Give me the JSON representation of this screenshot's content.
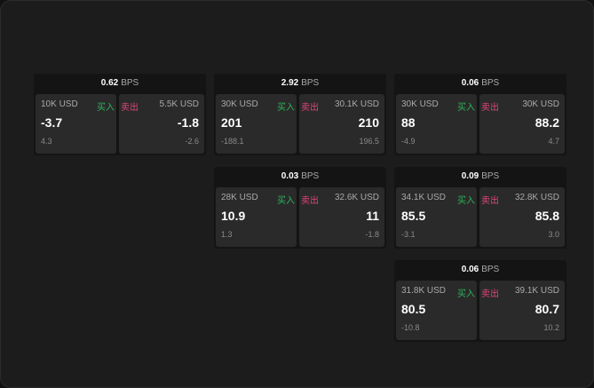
{
  "unit": "BPS",
  "buy_label": "买入",
  "sell_label": "卖出",
  "colors": {
    "buy": "#2fb45a",
    "sell": "#e0457b",
    "background": "#1c1c1c"
  },
  "cards": [
    {
      "spread": "0.62",
      "buy": {
        "qty": "10K USD",
        "price": "-3.7",
        "change": "4.3"
      },
      "sell": {
        "qty": "5.5K USD",
        "price": "-1.8",
        "change": "-2.6"
      }
    },
    {
      "spread": "2.92",
      "buy": {
        "qty": "30K USD",
        "price": "201",
        "change": "-188.1"
      },
      "sell": {
        "qty": "30.1K USD",
        "price": "210",
        "change": "196.5"
      }
    },
    {
      "spread": "0.06",
      "buy": {
        "qty": "30K USD",
        "price": "88",
        "change": "-4.9"
      },
      "sell": {
        "qty": "30K USD",
        "price": "88.2",
        "change": "4.7"
      }
    },
    {
      "spread": "0.03",
      "buy": {
        "qty": "28K USD",
        "price": "10.9",
        "change": "1.3"
      },
      "sell": {
        "qty": "32.6K USD",
        "price": "11",
        "change": "-1.8"
      }
    },
    {
      "spread": "0.09",
      "buy": {
        "qty": "34.1K USD",
        "price": "85.5",
        "change": "-3.1"
      },
      "sell": {
        "qty": "32.8K USD",
        "price": "85.8",
        "change": "3.0"
      }
    },
    {
      "spread": "0.06",
      "buy": {
        "qty": "31.8K USD",
        "price": "80.5",
        "change": "-10.8"
      },
      "sell": {
        "qty": "39.1K USD",
        "price": "80.7",
        "change": "10.2"
      }
    }
  ]
}
